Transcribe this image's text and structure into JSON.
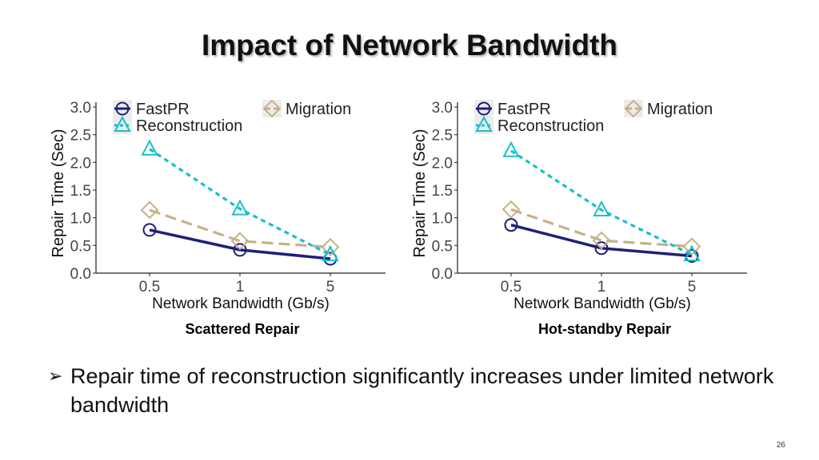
{
  "slide": {
    "title": "Impact of Network Bandwidth",
    "bullet": "Repair time of reconstruction significantly increases under limited network bandwidth",
    "bullet_marker": "➢",
    "page_number": "26",
    "captions": [
      "Scattered Repair",
      "Hot-standby Repair"
    ]
  },
  "chart_data": [
    {
      "type": "line",
      "caption": "Scattered Repair",
      "xlabel": "Network Bandwidth (Gb/s)",
      "ylabel": "Repair Time (Sec)",
      "categories": [
        "0.5",
        "1",
        "5"
      ],
      "ylim": [
        0,
        3.0
      ],
      "yticks": [
        "0.0",
        "0.5",
        "1.0",
        "1.5",
        "2.0",
        "2.5",
        "3.0"
      ],
      "legend_position": "top",
      "grid": false,
      "series": [
        {
          "name": "FastPR",
          "values": [
            0.78,
            0.42,
            0.26
          ],
          "color": "#1f1f7a",
          "marker": "circle",
          "dash": "solid"
        },
        {
          "name": "Migration",
          "values": [
            1.14,
            0.58,
            0.47
          ],
          "color": "#c9b088",
          "marker": "diamond",
          "dash": "dashed"
        },
        {
          "name": "Reconstruction",
          "values": [
            2.24,
            1.16,
            0.33
          ],
          "color": "#17c0c8",
          "marker": "triangle",
          "dash": "dotted"
        }
      ]
    },
    {
      "type": "line",
      "caption": "Hot-standby Repair",
      "xlabel": "Network Bandwidth (Gb/s)",
      "ylabel": "Repair Time (Sec)",
      "categories": [
        "0.5",
        "1",
        "5"
      ],
      "ylim": [
        0,
        3.0
      ],
      "yticks": [
        "0.0",
        "0.5",
        "1.0",
        "1.5",
        "2.0",
        "2.5",
        "3.0"
      ],
      "legend_position": "top",
      "grid": false,
      "series": [
        {
          "name": "FastPR",
          "values": [
            0.87,
            0.45,
            0.31
          ],
          "color": "#1f1f7a",
          "marker": "circle",
          "dash": "solid"
        },
        {
          "name": "Migration",
          "values": [
            1.15,
            0.59,
            0.48
          ],
          "color": "#c9b088",
          "marker": "diamond",
          "dash": "dashed"
        },
        {
          "name": "Reconstruction",
          "values": [
            2.21,
            1.14,
            0.33
          ],
          "color": "#17c0c8",
          "marker": "triangle",
          "dash": "dotted"
        }
      ]
    }
  ]
}
